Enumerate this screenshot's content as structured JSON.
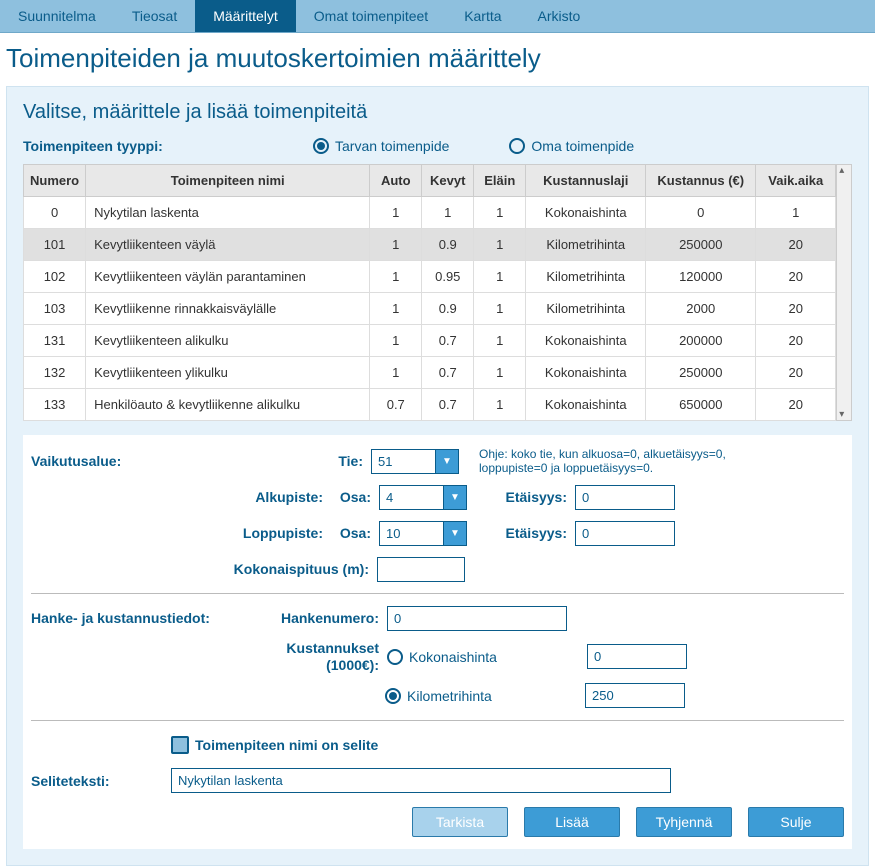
{
  "tabs": [
    "Suunnitelma",
    "Tieosat",
    "Määrittelyt",
    "Omat toimenpiteet",
    "Kartta",
    "Arkisto"
  ],
  "activeTab": 2,
  "pageTitle": "Toimenpiteiden ja muutoskertoimien määrittely",
  "sectionTitle": "Valitse, määrittele ja lisää toimenpiteitä",
  "typeLabel": "Toimenpiteen tyyppi:",
  "typeOptions": {
    "tarva": "Tarvan toimenpide",
    "oma": "Oma toimenpide"
  },
  "typeSelected": "tarva",
  "table": {
    "headers": [
      "Numero",
      "Toimenpiteen nimi",
      "Auto",
      "Kevyt",
      "Eläin",
      "Kustannuslaji",
      "Kustannus (€)",
      "Vaik.aika"
    ],
    "rows": [
      [
        "0",
        "Nykytilan laskenta",
        "1",
        "1",
        "1",
        "Kokonaishinta",
        "0",
        "1"
      ],
      [
        "101",
        "Kevytliikenteen väylä",
        "1",
        "0.9",
        "1",
        "Kilometrihinta",
        "250000",
        "20"
      ],
      [
        "102",
        "Kevytliikenteen väylän parantaminen",
        "1",
        "0.95",
        "1",
        "Kilometrihinta",
        "120000",
        "20"
      ],
      [
        "103",
        "Kevytliikenne rinnakkaisväylälle",
        "1",
        "0.9",
        "1",
        "Kilometrihinta",
        "2000",
        "20"
      ],
      [
        "131",
        "Kevytliikenteen alikulku",
        "1",
        "0.7",
        "1",
        "Kokonaishinta",
        "200000",
        "20"
      ],
      [
        "132",
        "Kevytliikenteen ylikulku",
        "1",
        "0.7",
        "1",
        "Kokonaishinta",
        "250000",
        "20"
      ],
      [
        "133",
        "Henkilöauto & kevytliikenne alikulku",
        "0.7",
        "0.7",
        "1",
        "Kokonaishinta",
        "650000",
        "20"
      ]
    ],
    "selectedRow": 1
  },
  "vaik": {
    "label": "Vaikutusalue:",
    "tieLabel": "Tie:",
    "tie": "51",
    "ohje": "Ohje: koko tie, kun alkuosa=0, alkuetäisyys=0, loppupiste=0 ja loppuetäisyys=0.",
    "alkuLabel": "Alkupiste:",
    "osaLabel": "Osa:",
    "alkuOsa": "4",
    "etLabel": "Etäisyys:",
    "alkuEt": "0",
    "loppuLabel": "Loppupiste:",
    "loppuOsa": "10",
    "loppuEt": "0",
    "kokLabel": "Kokonaispituus (m):",
    "kok": ""
  },
  "hanke": {
    "label": "Hanke- ja kustannustiedot:",
    "numLabel": "Hankenumero:",
    "num": "0",
    "kustLabel": "Kustannukset (1000€):",
    "kokoLabel": "Kokonaishinta",
    "kokoVal": "0",
    "kmLabel": "Kilometrihinta",
    "kmVal": "250",
    "kustSelected": "km"
  },
  "selite": {
    "chkLabel": "Toimenpiteen nimi on selite",
    "label": "Seliteteksti:",
    "value": "Nykytilan laskenta"
  },
  "buttons": {
    "tarkista": "Tarkista",
    "lisaa": "Lisää",
    "tyhjenna": "Tyhjennä",
    "sulje": "Sulje"
  }
}
